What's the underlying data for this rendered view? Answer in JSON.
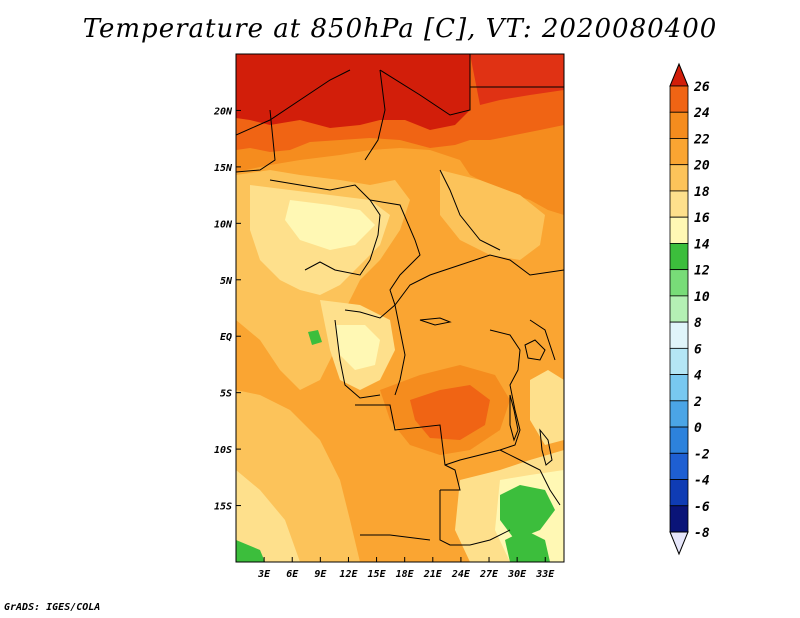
{
  "title": "Temperature at 850hPa [C], VT: 2020080400",
  "credit": "GrADS: IGES/COLA",
  "map": {
    "lon_range": [
      0,
      35
    ],
    "lat_range": [
      -20,
      25
    ],
    "lat_ticks": [
      "20N",
      "15N",
      "10N",
      "5N",
      "EQ",
      "5S",
      "10S",
      "15S"
    ],
    "lat_tick_values": [
      20,
      15,
      10,
      5,
      0,
      -5,
      -10,
      -15
    ],
    "lon_ticks": [
      "3E",
      "6E",
      "9E",
      "12E",
      "15E",
      "18E",
      "21E",
      "24E",
      "27E",
      "30E",
      "33E"
    ],
    "lon_tick_values": [
      3,
      6,
      9,
      12,
      15,
      18,
      21,
      24,
      27,
      30,
      33
    ]
  },
  "colorbar": {
    "levels": [
      "26",
      "24",
      "22",
      "20",
      "18",
      "16",
      "14",
      "12",
      "10",
      "8",
      "6",
      "4",
      "2",
      "0",
      "-2",
      "-4",
      "-6",
      "-8"
    ],
    "colors": [
      "#f03c0a",
      "#f06414",
      "#f58c1e",
      "#faa532",
      "#fcc35a",
      "#fee08c",
      "#fff8b4",
      "#3cbe3c",
      "#78dc78",
      "#b4f0b4",
      "#e0f5fa",
      "#b4e6f5",
      "#78c8f0",
      "#4ba5e6",
      "#2d82dc",
      "#1e5fd2",
      "#0f3cb4",
      "#0a1478"
    ],
    "top_triangle_color": "#d21e0a",
    "bottom_triangle_color": "#e6e6fa"
  }
}
